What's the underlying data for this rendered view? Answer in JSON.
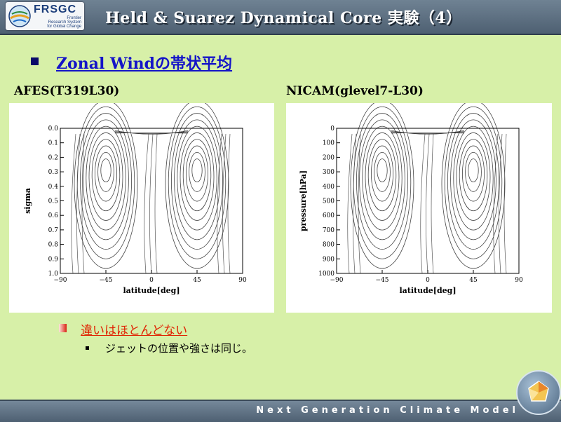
{
  "header": {
    "logo_text": "FRSGC",
    "logo_sub": "Frontier\nResearch System\nfor Global Change",
    "title": "Held & Suarez  Dynamical  Core  実験（4）"
  },
  "section_title": "Zonal Windの帯状平均",
  "panels": [
    {
      "label": "AFES(T319L30)",
      "x_axis_label": "latitude[deg]",
      "y_axis_label": "sigma",
      "x_ticks": [
        "−90",
        "−45",
        "0",
        "45",
        "90"
      ],
      "y_ticks": [
        "0.0",
        "0.1",
        "0.2",
        "0.3",
        "0.4",
        "0.5",
        "0.6",
        "0.7",
        "0.8",
        "0.9",
        "1.0"
      ]
    },
    {
      "label": "NICAM(glevel7-L30)",
      "x_axis_label": "latitude[deg]",
      "y_axis_label": "pressure[hPa]",
      "x_ticks": [
        "−90",
        "−45",
        "0",
        "45",
        "90"
      ],
      "y_ticks": [
        "0",
        "100",
        "200",
        "300",
        "400",
        "500",
        "600",
        "700",
        "800",
        "900",
        "1000"
      ]
    }
  ],
  "point": "違いはほとんどない",
  "subpoint": "ジェットの位置や強さは同じ。",
  "footer": "Next Generation Climate Model",
  "colors": {
    "background": "#d7f0a8",
    "header": "#5c6e80",
    "section": "#1414c8",
    "point": "#e02000"
  }
}
